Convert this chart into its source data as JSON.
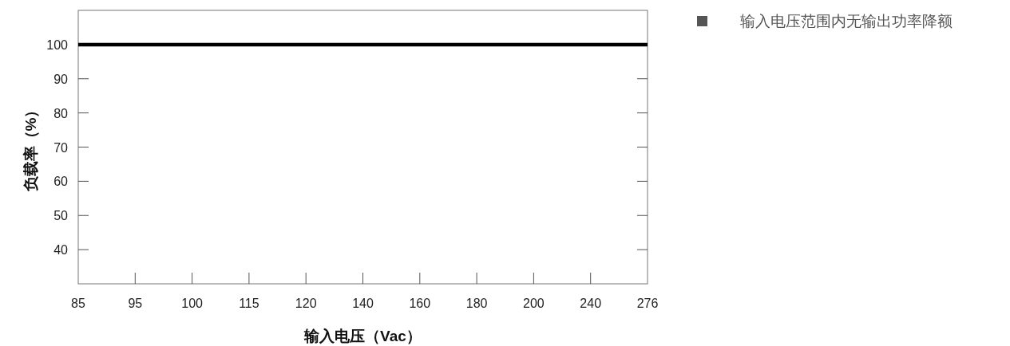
{
  "chart_data": {
    "type": "line",
    "xlabel": "输入电压（Vac）",
    "ylabel": "负载率（%）",
    "categories": [
      "85",
      "95",
      "100",
      "115",
      "120",
      "140",
      "160",
      "180",
      "200",
      "240",
      "276"
    ],
    "series": [
      {
        "color": "#000000",
        "values": [
          100,
          100,
          100,
          100,
          100,
          100,
          100,
          100,
          100,
          100,
          100
        ]
      }
    ],
    "ylim": [
      30,
      110
    ],
    "yticks": [
      40,
      50,
      60,
      70,
      80,
      90,
      100
    ],
    "marker": "none",
    "line_style": "solid",
    "grid": false,
    "annotations": [
      "输入电压范围内无输出功率降额"
    ]
  }
}
